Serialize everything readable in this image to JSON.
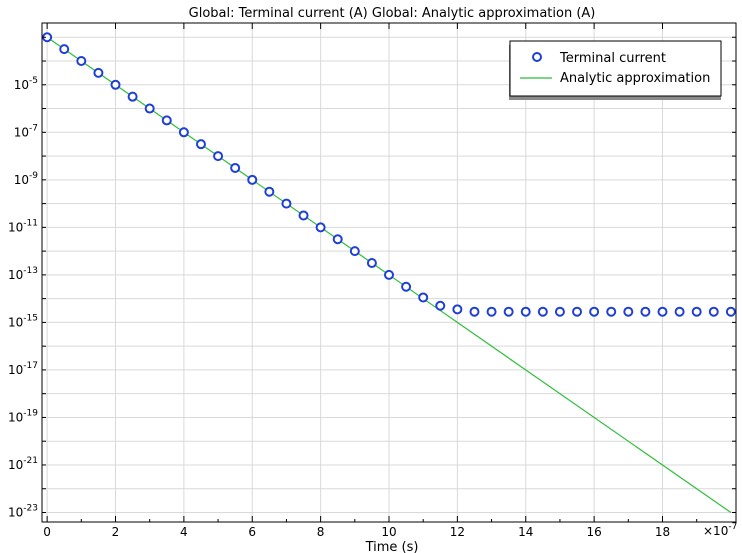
{
  "chart_data": {
    "type": "line",
    "title": "Global: Terminal current (A)  Global: Analytic approximation (A)",
    "xlabel": "Time (s)",
    "ylabel": "",
    "x_multiplier_label": "×10",
    "x_multiplier_exponent": "-7",
    "xlim": [
      -0.15,
      20.15
    ],
    "ylim_log10": [
      -23.4,
      -2.4
    ],
    "y_scale": "log",
    "grid": true,
    "legend_position": "top-right",
    "x_ticks": [
      0,
      2,
      4,
      6,
      8,
      10,
      12,
      14,
      16,
      18
    ],
    "x_tick_labels": [
      "0",
      "2",
      "4",
      "6",
      "8",
      "10",
      "12",
      "14",
      "16",
      "18"
    ],
    "y_ticks_log10": [
      -23,
      -21,
      -19,
      -17,
      -15,
      -13,
      -11,
      -9,
      -7,
      -5
    ],
    "y_tick_base": "10",
    "y_tick_exponents": [
      "-23",
      "-21",
      "-19",
      "-17",
      "-15",
      "-13",
      "-11",
      "-9",
      "-7",
      "-5"
    ],
    "series": [
      {
        "name": "Terminal current",
        "marker": "circle",
        "color": "#1f3fd6",
        "x": [
          0,
          0.5,
          1,
          1.5,
          2,
          2.5,
          3,
          3.5,
          4,
          4.5,
          5,
          5.5,
          6,
          6.5,
          7,
          7.5,
          8,
          8.5,
          9,
          9.5,
          10,
          10.5,
          11,
          11.5,
          12,
          12.5,
          13,
          13.5,
          14,
          14.5,
          15,
          15.5,
          16,
          16.5,
          17,
          17.5,
          18,
          18.5,
          19,
          19.5,
          20
        ],
        "log10_y": [
          -3.0,
          -3.5,
          -4.0,
          -4.5,
          -5.0,
          -5.5,
          -6.0,
          -6.5,
          -7.0,
          -7.5,
          -8.0,
          -8.5,
          -9.0,
          -9.5,
          -10.0,
          -10.5,
          -11.0,
          -11.5,
          -12.0,
          -12.5,
          -13.0,
          -13.5,
          -13.95,
          -14.3,
          -14.45,
          -14.55,
          -14.55,
          -14.55,
          -14.55,
          -14.55,
          -14.55,
          -14.55,
          -14.55,
          -14.55,
          -14.55,
          -14.55,
          -14.55,
          -14.55,
          -14.55,
          -14.55,
          -14.55
        ]
      },
      {
        "name": "Analytic approximation",
        "marker": "none",
        "color": "#2fbf3a",
        "x": [
          0,
          20
        ],
        "log10_y": [
          -3.0,
          -23.0
        ]
      }
    ]
  }
}
